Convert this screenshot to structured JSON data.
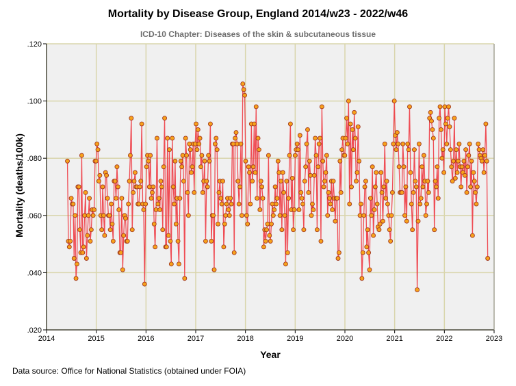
{
  "chart_data": {
    "type": "line",
    "title": "Mortality by Disease Group, England 2014/w23 - 2022/w46",
    "subtitle": "ICD-10 Chapter: Diseases of the skin & subcutaneous tissue",
    "xlabel": "Year",
    "ylabel": "Mortality (deaths/100k)",
    "xlim": [
      2014,
      2023
    ],
    "ylim": [
      0.02,
      0.12
    ],
    "x_start": 2014.42,
    "x_step_years": 0.019165,
    "x_ticks": [
      "2014",
      "2015",
      "2016",
      "2017",
      "2018",
      "2019",
      "2020",
      "2021",
      "2022",
      "2023"
    ],
    "y_ticks": [
      ".020",
      ".040",
      ".060",
      ".080",
      ".100",
      ".120"
    ],
    "grid": true,
    "colors": {
      "line": "#ee3a42",
      "marker_fill": "#f7a21b",
      "marker_edge": "#a0361e",
      "plot_bg": "#f0f0f0",
      "grid": "#d9d5ac"
    },
    "series": [
      {
        "name": "Mortality",
        "values": [
          0.079,
          0.051,
          0.049,
          0.051,
          0.066,
          0.064,
          0.064,
          0.045,
          0.06,
          0.038,
          0.043,
          0.07,
          0.07,
          0.055,
          0.047,
          0.081,
          0.047,
          0.049,
          0.06,
          0.068,
          0.045,
          0.053,
          0.06,
          0.066,
          0.051,
          0.055,
          0.062,
          0.06,
          0.062,
          0.079,
          0.079,
          0.085,
          0.083,
          0.072,
          0.074,
          0.06,
          0.055,
          0.07,
          0.06,
          0.053,
          0.075,
          0.074,
          0.066,
          0.06,
          0.06,
          0.055,
          0.064,
          0.057,
          0.051,
          0.072,
          0.072,
          0.066,
          0.077,
          0.07,
          0.062,
          0.047,
          0.047,
          0.066,
          0.041,
          0.053,
          0.06,
          0.059,
          0.051,
          0.051,
          0.064,
          0.072,
          0.081,
          0.094,
          0.055,
          0.068,
          0.072,
          0.075,
          0.07,
          0.07,
          0.064,
          0.064,
          0.07,
          0.072,
          0.092,
          0.064,
          0.062,
          0.036,
          0.064,
          0.077,
          0.081,
          0.079,
          0.07,
          0.081,
          0.066,
          0.068,
          0.07,
          0.057,
          0.049,
          0.062,
          0.087,
          0.064,
          0.066,
          0.062,
          0.072,
          0.07,
          0.055,
          0.077,
          0.094,
          0.049,
          0.049,
          0.087,
          0.053,
          0.083,
          0.051,
          0.043,
          0.087,
          0.07,
          0.064,
          0.079,
          0.057,
          0.066,
          0.051,
          0.043,
          0.066,
          0.079,
          0.077,
          0.081,
          0.072,
          0.038,
          0.087,
          0.081,
          0.068,
          0.06,
          0.085,
          0.083,
          0.075,
          0.077,
          0.085,
          0.068,
          0.085,
          0.092,
          0.083,
          0.09,
          0.085,
          0.087,
          0.077,
          0.081,
          0.068,
          0.072,
          0.079,
          0.051,
          0.072,
          0.07,
          0.081,
          0.079,
          0.092,
          0.051,
          0.06,
          0.06,
          0.041,
          0.085,
          0.087,
          0.083,
          0.057,
          0.068,
          0.072,
          0.066,
          0.064,
          0.072,
          0.049,
          0.057,
          0.06,
          0.064,
          0.066,
          0.062,
          0.06,
          0.066,
          0.064,
          0.085,
          0.085,
          0.047,
          0.087,
          0.089,
          0.085,
          0.072,
          0.064,
          0.07,
          0.085,
          0.06,
          0.106,
          0.104,
          0.102,
          0.079,
          0.06,
          0.057,
          0.077,
          0.075,
          0.064,
          0.092,
          0.072,
          0.077,
          0.092,
          0.075,
          0.098,
          0.066,
          0.087,
          0.083,
          0.062,
          0.072,
          0.07,
          0.066,
          0.049,
          0.055,
          0.051,
          0.055,
          0.057,
          0.081,
          0.053,
          0.051,
          0.057,
          0.064,
          0.06,
          0.062,
          0.07,
          0.064,
          0.066,
          0.079,
          0.075,
          0.06,
          0.072,
          0.055,
          0.075,
          0.068,
          0.06,
          0.043,
          0.072,
          0.047,
          0.066,
          0.081,
          0.092,
          0.062,
          0.073,
          0.055,
          0.062,
          0.081,
          0.083,
          0.085,
          0.083,
          0.062,
          0.088,
          0.068,
          0.066,
          0.064,
          0.055,
          0.072,
          0.077,
          0.085,
          0.09,
          0.068,
          0.079,
          0.074,
          0.06,
          0.064,
          0.062,
          0.074,
          0.087,
          0.081,
          0.055,
          0.077,
          0.085,
          0.087,
          0.051,
          0.098,
          0.079,
          0.07,
          0.072,
          0.075,
          0.081,
          0.06,
          0.068,
          0.066,
          0.064,
          0.072,
          0.062,
          0.072,
          0.066,
          0.058,
          0.066,
          0.066,
          0.045,
          0.047,
          0.079,
          0.068,
          0.083,
          0.087,
          0.081,
          0.081,
          0.087,
          0.094,
          0.085,
          0.1,
          0.064,
          0.092,
          0.07,
          0.09,
          0.083,
          0.096,
          0.087,
          0.072,
          0.075,
          0.091,
          0.079,
          0.06,
          0.064,
          0.038,
          0.047,
          0.06,
          0.07,
          0.072,
          0.049,
          0.055,
          0.047,
          0.041,
          0.066,
          0.06,
          0.077,
          0.053,
          0.062,
          0.07,
          0.075,
          0.064,
          0.056,
          0.055,
          0.057,
          0.075,
          0.068,
          0.058,
          0.07,
          0.085,
          0.066,
          0.072,
          0.064,
          0.06,
          0.055,
          0.051,
          0.06,
          0.068,
          0.085,
          0.1,
          0.088,
          0.083,
          0.089,
          0.085,
          0.077,
          0.068,
          0.068,
          0.068,
          0.085,
          0.077,
          0.06,
          0.07,
          0.058,
          0.085,
          0.083,
          0.098,
          0.075,
          0.064,
          0.055,
          0.068,
          0.083,
          0.072,
          0.07,
          0.034,
          0.058,
          0.085,
          0.064,
          0.066,
          0.077,
          0.07,
          0.081,
          0.072,
          0.06,
          0.064,
          0.072,
          0.068,
          0.094,
          0.096,
          0.093,
          0.09,
          0.087,
          0.055,
          0.072,
          0.07,
          0.077,
          0.066,
          0.094,
          0.098,
          0.09,
          0.08,
          0.083,
          0.075,
          0.098,
          0.092,
          0.085,
          0.094,
          0.098,
          0.091,
          0.083,
          0.077,
          0.072,
          0.079,
          0.094,
          0.073,
          0.083,
          0.075,
          0.079,
          0.085,
          0.077,
          0.07,
          0.077,
          0.075,
          0.079,
          0.074,
          0.083,
          0.068,
          0.077,
          0.081,
          0.085,
          0.07,
          0.079,
          0.053,
          0.075,
          0.072,
          0.068,
          0.064,
          0.07,
          0.085,
          0.083,
          0.081,
          0.08,
          0.079,
          0.083,
          0.075,
          0.081,
          0.092,
          0.079,
          0.045
        ]
      }
    ],
    "source": "Data source: Office for National Statistics (obtained under FOIA)"
  }
}
